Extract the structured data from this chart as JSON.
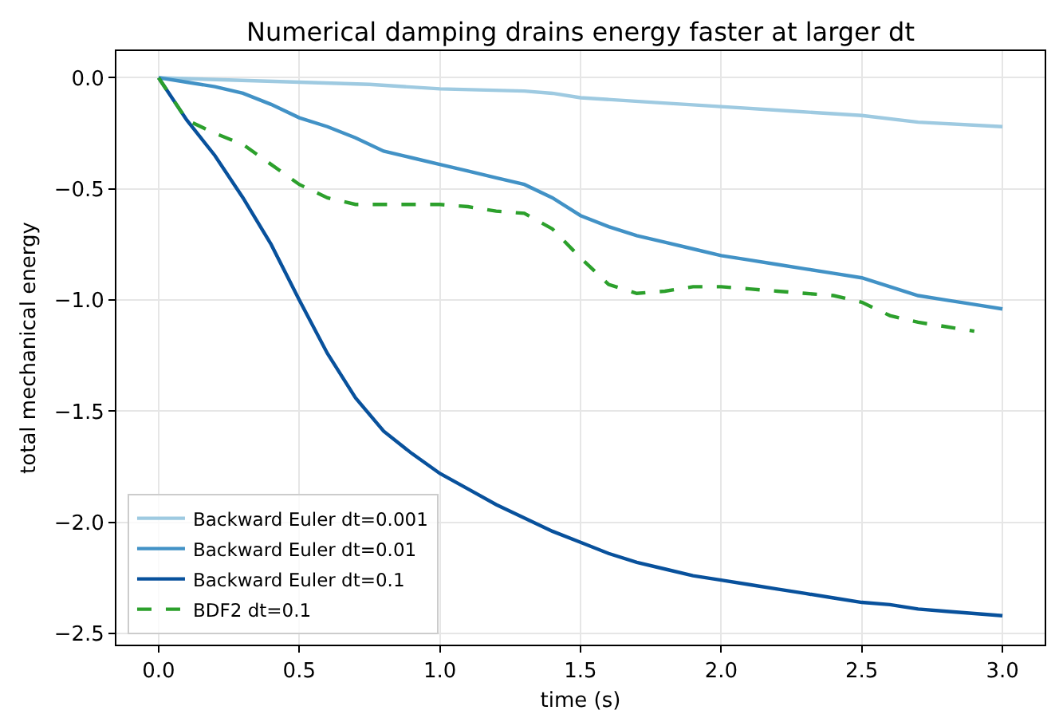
{
  "chart_data": {
    "type": "line",
    "title": "Numerical damping drains energy faster at larger dt",
    "xlabel": "time (s)",
    "ylabel": "total mechanical energy",
    "xlim": [
      -0.15,
      3.15
    ],
    "ylim": [
      -2.55,
      0.12
    ],
    "xticks": [
      {
        "value": 0,
        "label": "0.0"
      },
      {
        "value": 0.5,
        "label": "0.5"
      },
      {
        "value": 1,
        "label": "1.0"
      },
      {
        "value": 1.5,
        "label": "1.5"
      },
      {
        "value": 2,
        "label": "2.0"
      },
      {
        "value": 2.5,
        "label": "2.5"
      },
      {
        "value": 3,
        "label": "3.0"
      }
    ],
    "yticks": [
      {
        "value": 0,
        "label": "0.0"
      },
      {
        "value": -0.5,
        "label": "−0.5"
      },
      {
        "value": -1,
        "label": "−1.0"
      },
      {
        "value": -1.5,
        "label": "−1.5"
      },
      {
        "value": -2,
        "label": "−2.0"
      },
      {
        "value": -2.5,
        "label": "−2.5"
      }
    ],
    "grid": true,
    "legend": "bottom left",
    "series": [
      {
        "name": "Backward Euler dt=0.001",
        "color": "#9ecae1",
        "line_style": "solid",
        "x": [
          0,
          0.25,
          0.5,
          0.75,
          1.0,
          1.3,
          1.4,
          1.5,
          1.75,
          2.0,
          2.25,
          2.5,
          2.7,
          3.0
        ],
        "values": [
          0,
          -0.01,
          -0.02,
          -0.03,
          -0.05,
          -0.06,
          -0.07,
          -0.09,
          -0.11,
          -0.13,
          -0.15,
          -0.17,
          -0.2,
          -0.22
        ]
      },
      {
        "name": "Backward Euler dt=0.01",
        "color": "#4292c6",
        "line_style": "solid",
        "x": [
          0,
          0.1,
          0.2,
          0.3,
          0.4,
          0.5,
          0.6,
          0.7,
          0.8,
          0.9,
          1.0,
          1.1,
          1.2,
          1.3,
          1.4,
          1.5,
          1.6,
          1.7,
          1.8,
          1.9,
          2.0,
          2.1,
          2.2,
          2.3,
          2.4,
          2.5,
          2.6,
          2.7,
          2.8,
          2.9,
          3.0
        ],
        "values": [
          0,
          -0.02,
          -0.04,
          -0.07,
          -0.12,
          -0.18,
          -0.22,
          -0.27,
          -0.33,
          -0.36,
          -0.39,
          -0.42,
          -0.45,
          -0.48,
          -0.54,
          -0.62,
          -0.67,
          -0.71,
          -0.74,
          -0.77,
          -0.8,
          -0.82,
          -0.84,
          -0.86,
          -0.88,
          -0.9,
          -0.94,
          -0.98,
          -1.0,
          -1.02,
          -1.04
        ]
      },
      {
        "name": "Backward Euler dt=0.1",
        "color": "#08519c",
        "line_style": "solid",
        "x": [
          0,
          0.1,
          0.2,
          0.3,
          0.4,
          0.5,
          0.6,
          0.7,
          0.8,
          0.9,
          1.0,
          1.1,
          1.2,
          1.3,
          1.4,
          1.5,
          1.6,
          1.7,
          1.8,
          1.9,
          2.0,
          2.1,
          2.2,
          2.3,
          2.4,
          2.5,
          2.6,
          2.7,
          2.8,
          2.9,
          3.0
        ],
        "values": [
          0,
          -0.19,
          -0.35,
          -0.54,
          -0.75,
          -1.0,
          -1.24,
          -1.44,
          -1.59,
          -1.69,
          -1.78,
          -1.85,
          -1.92,
          -1.98,
          -2.04,
          -2.09,
          -2.14,
          -2.18,
          -2.21,
          -2.24,
          -2.26,
          -2.28,
          -2.3,
          -2.32,
          -2.34,
          -2.36,
          -2.37,
          -2.39,
          -2.4,
          -2.41,
          -2.42
        ]
      },
      {
        "name": "BDF2 dt=0.1",
        "color": "#2ca02c",
        "line_style": "dashed",
        "x": [
          0,
          0.1,
          0.2,
          0.3,
          0.4,
          0.5,
          0.6,
          0.7,
          0.8,
          0.9,
          1.0,
          1.1,
          1.2,
          1.3,
          1.4,
          1.5,
          1.6,
          1.7,
          1.8,
          1.9,
          2.0,
          2.1,
          2.2,
          2.3,
          2.4,
          2.5,
          2.6,
          2.7,
          2.8,
          2.9
        ],
        "values": [
          0,
          -0.19,
          -0.25,
          -0.3,
          -0.39,
          -0.48,
          -0.54,
          -0.57,
          -0.57,
          -0.57,
          -0.57,
          -0.58,
          -0.6,
          -0.61,
          -0.68,
          -0.81,
          -0.93,
          -0.97,
          -0.96,
          -0.94,
          -0.94,
          -0.95,
          -0.96,
          -0.97,
          -0.98,
          -1.01,
          -1.07,
          -1.1,
          -1.12,
          -1.14
        ]
      }
    ]
  }
}
